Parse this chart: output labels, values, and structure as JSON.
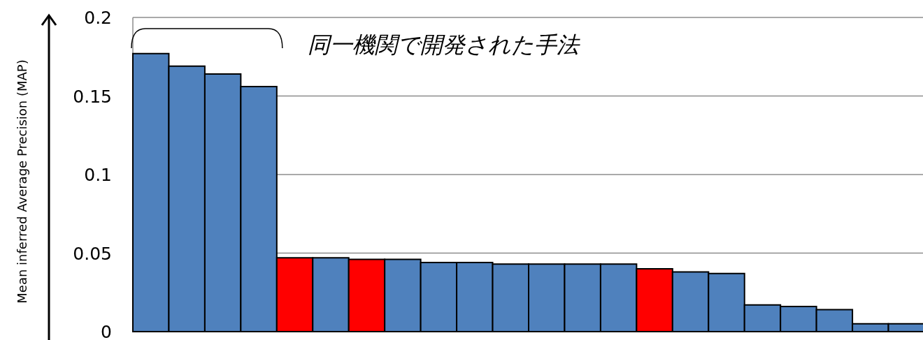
{
  "chart_data": {
    "type": "bar",
    "ylabel": "Mean inferred Average Precision (MAP)",
    "annotations": [
      "同一機関で開発された手法"
    ],
    "categories": [
      null,
      null,
      null,
      null,
      null,
      null,
      null,
      null,
      null,
      null,
      null,
      null,
      null,
      null,
      null,
      null,
      null,
      null,
      null,
      null,
      null,
      null
    ],
    "values": [
      0.177,
      0.169,
      0.164,
      0.156,
      0.047,
      0.047,
      0.046,
      0.046,
      0.044,
      0.044,
      0.043,
      0.043,
      0.043,
      0.043,
      0.04,
      0.038,
      0.037,
      0.017,
      0.016,
      0.014,
      0.005,
      0.005
    ],
    "colors": [
      "#4f81bd",
      "#4f81bd",
      "#4f81bd",
      "#4f81bd",
      "#ff0000",
      "#4f81bd",
      "#ff0000",
      "#4f81bd",
      "#4f81bd",
      "#4f81bd",
      "#4f81bd",
      "#4f81bd",
      "#4f81bd",
      "#4f81bd",
      "#ff0000",
      "#4f81bd",
      "#4f81bd",
      "#4f81bd",
      "#4f81bd",
      "#4f81bd",
      "#4f81bd",
      "#4f81bd"
    ],
    "ylim": [
      0,
      0.2
    ],
    "yticks": [
      0,
      0.05,
      0.1,
      0.15,
      0.2
    ],
    "grid": "y",
    "tick_labels": "y"
  }
}
